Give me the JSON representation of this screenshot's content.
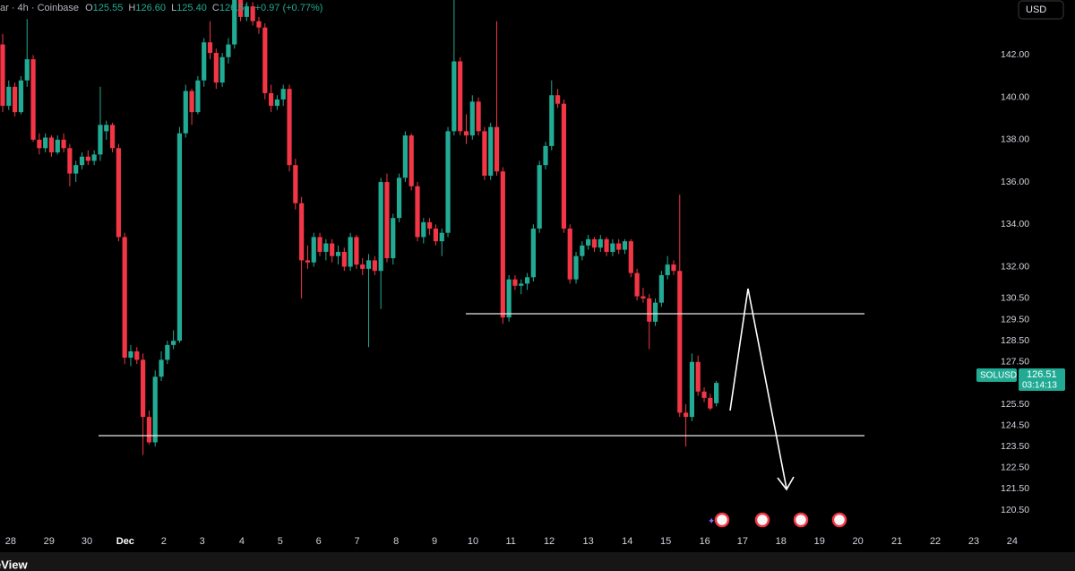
{
  "header": {
    "symbol": "ar · 4h · Coinbase",
    "ohlc": [
      {
        "key": "O",
        "value": "125.55"
      },
      {
        "key": "H",
        "value": "126.60"
      },
      {
        "key": "L",
        "value": "125.40"
      },
      {
        "key": "C",
        "value": "126.51"
      }
    ],
    "change": "+0.97 (+0.77%)"
  },
  "currency": "USD",
  "price_tag": {
    "symbol": "SOLUSD",
    "price": "126.51",
    "countdown": "03:14:13"
  },
  "brand": "eView",
  "chart_data": {
    "type": "candlestick",
    "up_color": "#22ab94",
    "down_color": "#f23645",
    "grid": false,
    "x": [
      0,
      1,
      2,
      3,
      4,
      5,
      6,
      7,
      8,
      9,
      10,
      11,
      12,
      13,
      14,
      15,
      16,
      17,
      18,
      19,
      20,
      21,
      22,
      23,
      24,
      25,
      26,
      27,
      28,
      29,
      30,
      31,
      32,
      33,
      34,
      35,
      36,
      37,
      38,
      39,
      40,
      41,
      42,
      43,
      44,
      45,
      46,
      47,
      48,
      49,
      50,
      51,
      52,
      53,
      54,
      55,
      56,
      57,
      58,
      59,
      60,
      61,
      62,
      63,
      64,
      65,
      66,
      67,
      68,
      69,
      70,
      71,
      72,
      73,
      74,
      75,
      76,
      77,
      78,
      79,
      80,
      81,
      82,
      83,
      84,
      85,
      86,
      87,
      88,
      89,
      90,
      91,
      92,
      93,
      94,
      95,
      96,
      97,
      98,
      99,
      100,
      101,
      102,
      103,
      104,
      105,
      106,
      107,
      108,
      109,
      110,
      111,
      112,
      113,
      114,
      115,
      116,
      117
    ],
    "open": [
      142.5,
      139.6,
      140.5,
      139.3,
      140.8,
      141.8,
      138.0,
      137.6,
      138.1,
      137.4,
      138.0,
      137.6,
      136.4,
      136.8,
      137.2,
      137.0,
      137.3,
      138.4,
      138.7,
      137.6,
      133.4,
      127.7,
      128.0,
      127.6,
      124.9,
      123.7,
      126.8,
      127.6,
      128.3,
      128.5,
      138.3,
      140.3,
      139.3,
      140.8,
      142.6,
      142.1,
      140.7,
      141.9,
      142.5,
      144.8,
      143.8,
      144.3,
      143.6,
      143.3,
      140.2,
      139.6,
      139.9,
      140.4,
      136.8,
      135.0,
      132.3,
      132.2,
      133.4,
      132.7,
      133.1,
      132.5,
      132.7,
      132.0,
      133.4,
      132.1,
      131.9,
      132.3,
      131.8,
      136.0,
      132.4,
      134.3,
      136.2,
      138.2,
      135.8,
      133.4,
      134.1,
      133.8,
      133.2,
      133.6,
      138.4,
      141.7,
      138.4,
      138.2,
      139.8,
      138.4,
      136.3,
      138.6,
      136.5,
      129.6,
      131.4,
      131.1,
      131.2,
      131.5,
      133.8,
      136.8,
      137.7,
      140.1,
      139.7,
      133.8,
      131.4,
      132.5,
      133.0,
      133.3,
      132.9,
      133.3,
      132.7,
      133.1,
      132.8,
      133.2,
      131.7,
      130.6,
      130.5,
      129.4,
      130.3,
      131.6,
      132.1,
      131.8,
      125.1,
      124.9,
      127.5,
      126.1,
      125.8,
      125.55
    ],
    "high": [
      143.0,
      140.8,
      140.7,
      141.0,
      143.7,
      142.0,
      138.3,
      138.3,
      138.2,
      138.2,
      138.3,
      137.8,
      137.0,
      137.4,
      137.5,
      137.5,
      140.5,
      138.9,
      138.8,
      137.8,
      133.6,
      128.3,
      128.2,
      127.9,
      125.2,
      127.1,
      128.0,
      128.5,
      129.0,
      138.6,
      140.6,
      140.4,
      141.0,
      142.8,
      143.6,
      142.3,
      142.1,
      142.8,
      144.9,
      144.9,
      144.5,
      144.5,
      143.8,
      143.5,
      140.6,
      140.1,
      140.6,
      140.6,
      137.1,
      135.3,
      133.0,
      133.6,
      133.6,
      133.3,
      133.3,
      133.0,
      132.9,
      133.6,
      133.5,
      132.4,
      132.6,
      132.5,
      136.2,
      136.4,
      134.5,
      136.4,
      138.4,
      138.3,
      136.0,
      134.3,
      134.3,
      134.0,
      133.8,
      138.6,
      145.0,
      141.9,
      139.2,
      140.1,
      140.0,
      138.6,
      138.8,
      143.6,
      136.7,
      131.6,
      131.6,
      131.4,
      131.7,
      134.0,
      137.0,
      137.9,
      140.8,
      140.4,
      139.9,
      134.0,
      132.7,
      133.2,
      133.5,
      133.4,
      133.5,
      133.4,
      133.3,
      133.3,
      133.3,
      133.3,
      131.9,
      131.0,
      130.7,
      130.5,
      131.8,
      132.5,
      132.3,
      135.4,
      125.5,
      127.9,
      127.8,
      126.3,
      126.0,
      126.6
    ],
    "low": [
      139.3,
      139.4,
      139.1,
      139.2,
      140.5,
      137.9,
      137.3,
      137.4,
      137.2,
      137.3,
      137.4,
      135.8,
      136.0,
      136.6,
      136.8,
      136.8,
      137.0,
      138.0,
      137.4,
      133.2,
      127.4,
      127.3,
      127.4,
      123.1,
      123.6,
      123.5,
      126.6,
      127.4,
      128.1,
      128.4,
      138.1,
      138.7,
      139.2,
      140.5,
      141.8,
      140.4,
      140.5,
      141.6,
      142.3,
      143.6,
      143.6,
      143.4,
      143.0,
      139.9,
      139.3,
      139.4,
      139.6,
      136.5,
      134.7,
      130.5,
      131.9,
      132.0,
      132.5,
      132.3,
      132.2,
      132.1,
      131.8,
      131.8,
      131.9,
      131.6,
      128.2,
      131.6,
      130.0,
      132.2,
      132.1,
      134.1,
      136.0,
      135.6,
      133.2,
      133.1,
      133.5,
      133.0,
      132.5,
      133.4,
      138.2,
      138.2,
      137.8,
      138.0,
      138.2,
      136.1,
      136.1,
      136.3,
      129.3,
      129.4,
      130.9,
      130.7,
      130.9,
      131.3,
      133.6,
      136.6,
      137.5,
      139.5,
      133.6,
      131.2,
      131.2,
      132.3,
      132.8,
      132.7,
      132.7,
      132.5,
      132.5,
      132.6,
      132.6,
      131.5,
      130.4,
      130.3,
      128.1,
      129.2,
      130.1,
      131.4,
      131.6,
      124.9,
      123.5,
      124.7,
      125.9,
      125.6,
      125.2,
      125.4
    ],
    "close": [
      139.6,
      140.5,
      139.3,
      140.8,
      141.8,
      138.0,
      137.6,
      138.1,
      137.4,
      138.0,
      137.6,
      136.4,
      136.8,
      137.2,
      137.0,
      137.3,
      138.7,
      138.7,
      137.6,
      133.4,
      127.7,
      128.0,
      127.6,
      124.9,
      123.7,
      126.8,
      127.6,
      128.3,
      128.5,
      138.3,
      140.3,
      139.3,
      140.8,
      142.6,
      142.1,
      140.7,
      141.9,
      142.5,
      144.8,
      143.8,
      144.3,
      143.6,
      143.3,
      140.2,
      139.6,
      139.9,
      140.4,
      136.8,
      135.0,
      132.3,
      132.2,
      133.4,
      132.7,
      133.1,
      132.5,
      132.7,
      132.0,
      133.4,
      132.1,
      131.9,
      132.3,
      131.8,
      136.0,
      132.4,
      134.3,
      136.2,
      138.2,
      135.8,
      133.4,
      134.1,
      133.8,
      133.2,
      133.6,
      138.4,
      141.7,
      138.4,
      138.2,
      139.8,
      138.4,
      136.3,
      138.6,
      136.5,
      129.6,
      131.4,
      131.1,
      131.2,
      131.5,
      133.8,
      136.8,
      137.7,
      140.1,
      139.7,
      133.8,
      131.4,
      132.5,
      133.0,
      133.3,
      132.9,
      133.3,
      132.7,
      133.1,
      132.8,
      133.2,
      131.7,
      130.6,
      130.5,
      129.4,
      130.3,
      131.6,
      132.1,
      131.8,
      125.1,
      124.9,
      127.5,
      126.1,
      125.8,
      125.3,
      126.51
    ],
    "xlim": [
      -0.44,
      175.8
    ],
    "xticks": [
      {
        "value": 1.3,
        "label": "28"
      },
      {
        "value": 7.6,
        "label": "29"
      },
      {
        "value": 13.8,
        "label": "30"
      },
      {
        "value": 20.1,
        "label": "Dec"
      },
      {
        "value": 26.4,
        "label": "2"
      },
      {
        "value": 32.7,
        "label": "3"
      },
      {
        "value": 39.2,
        "label": "4"
      },
      {
        "value": 45.5,
        "label": "5"
      },
      {
        "value": 51.8,
        "label": "6"
      },
      {
        "value": 58.1,
        "label": "7"
      },
      {
        "value": 64.5,
        "label": "8"
      },
      {
        "value": 70.8,
        "label": "9"
      },
      {
        "value": 77.1,
        "label": "10"
      },
      {
        "value": 83.3,
        "label": "11"
      },
      {
        "value": 89.6,
        "label": "12"
      },
      {
        "value": 96.0,
        "label": "13"
      },
      {
        "value": 102.4,
        "label": "14"
      },
      {
        "value": 108.7,
        "label": "15"
      },
      {
        "value": 115.1,
        "label": "16"
      },
      {
        "value": 121.3,
        "label": "17"
      },
      {
        "value": 127.6,
        "label": "18"
      },
      {
        "value": 133.9,
        "label": "19"
      },
      {
        "value": 140.2,
        "label": "20"
      },
      {
        "value": 146.6,
        "label": "21"
      },
      {
        "value": 152.9,
        "label": "22"
      },
      {
        "value": 159.2,
        "label": "23"
      },
      {
        "value": 165.5,
        "label": "24"
      }
    ],
    "ylim": [
      119.4,
      144.6
    ],
    "yticks": [
      {
        "value": 142,
        "label": "142.00"
      },
      {
        "value": 140,
        "label": "140.00"
      },
      {
        "value": 138,
        "label": "138.00"
      },
      {
        "value": 136,
        "label": "136.00"
      },
      {
        "value": 134,
        "label": "134.00"
      },
      {
        "value": 132,
        "label": "132.00"
      },
      {
        "value": 130.5,
        "label": "130.50"
      },
      {
        "value": 129.5,
        "label": "129.50"
      },
      {
        "value": 128.5,
        "label": "128.50"
      },
      {
        "value": 127.5,
        "label": "127.50"
      },
      {
        "value": 125.5,
        "label": "125.50"
      },
      {
        "value": 124.5,
        "label": "124.50"
      },
      {
        "value": 123.5,
        "label": "123.50"
      },
      {
        "value": 122.5,
        "label": "122.50"
      },
      {
        "value": 121.5,
        "label": "121.50"
      },
      {
        "value": 120.5,
        "label": "120.50"
      }
    ]
  }
}
